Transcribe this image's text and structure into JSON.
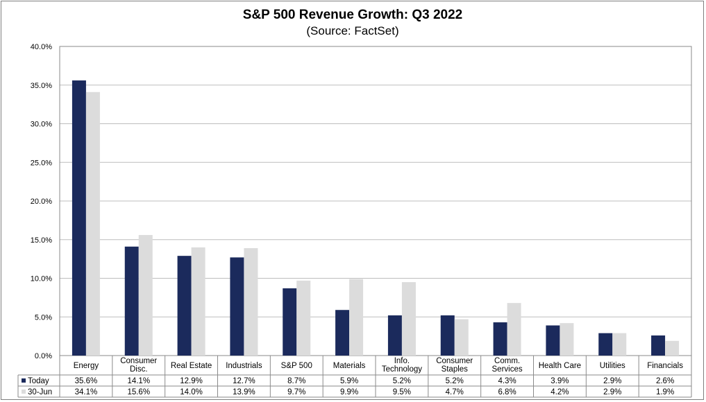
{
  "chart_data": {
    "type": "bar",
    "title": "S&P 500 Revenue Growth: Q3 2022",
    "subtitle": "(Source: FactSet)",
    "categories": [
      [
        "Energy"
      ],
      [
        "Consumer",
        "Disc."
      ],
      [
        "Real Estate"
      ],
      [
        "Industrials"
      ],
      [
        "S&P 500"
      ],
      [
        "Materials"
      ],
      [
        "Info.",
        "Technology"
      ],
      [
        "Consumer",
        "Staples"
      ],
      [
        "Comm.",
        "Services"
      ],
      [
        "Health Care"
      ],
      [
        "Utilities"
      ],
      [
        "Financials"
      ]
    ],
    "series": [
      {
        "name": "Today",
        "color": "#1b2a5c",
        "values": [
          35.6,
          14.1,
          12.9,
          12.7,
          8.7,
          5.9,
          5.2,
          5.2,
          4.3,
          3.9,
          2.9,
          2.6
        ],
        "labels": [
          "35.6%",
          "14.1%",
          "12.9%",
          "12.7%",
          "8.7%",
          "5.9%",
          "5.2%",
          "5.2%",
          "4.3%",
          "3.9%",
          "2.9%",
          "2.6%"
        ]
      },
      {
        "name": "30-Jun",
        "color": "#dcdcdc",
        "values": [
          34.1,
          15.6,
          14.0,
          13.9,
          9.7,
          9.9,
          9.5,
          4.7,
          6.8,
          4.2,
          2.9,
          1.9
        ],
        "labels": [
          "34.1%",
          "15.6%",
          "14.0%",
          "13.9%",
          "9.7%",
          "9.9%",
          "9.5%",
          "4.7%",
          "6.8%",
          "4.2%",
          "2.9%",
          "1.9%"
        ]
      }
    ],
    "yticks": [
      "0.0%",
      "5.0%",
      "10.0%",
      "15.0%",
      "20.0%",
      "25.0%",
      "30.0%",
      "35.0%",
      "40.0%"
    ],
    "ylim": [
      0,
      40
    ],
    "grid": true,
    "legend": "data-table"
  }
}
